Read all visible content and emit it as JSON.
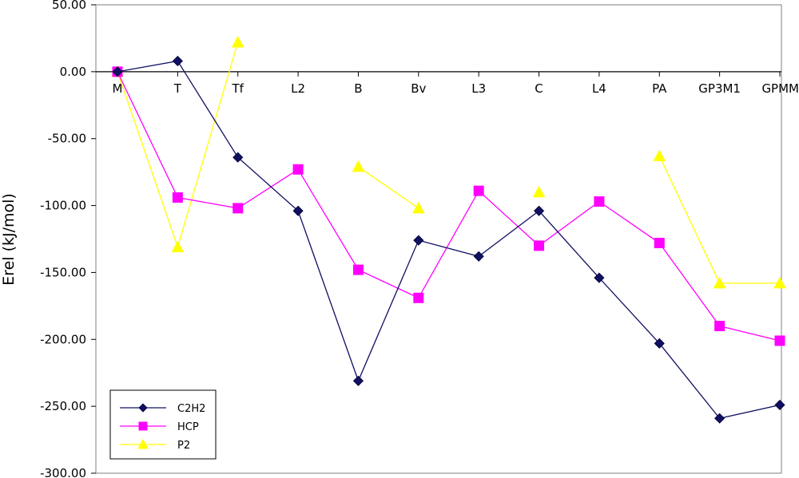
{
  "chart_data": {
    "type": "line",
    "title": "",
    "xlabel": "",
    "ylabel": "Erel (kJ/mol)",
    "categories": [
      "M",
      "T",
      "Tf",
      "L2",
      "B",
      "Bv",
      "L3",
      "C",
      "L4",
      "PA",
      "GP3M1",
      "GPMM"
    ],
    "ylim": [
      -300,
      50
    ],
    "yticks": [
      50,
      0,
      -50,
      -100,
      -150,
      -200,
      -250,
      -300
    ],
    "ytick_labels": [
      "50.00",
      "0.00",
      "-50.00",
      "-100.00",
      "-150.00",
      "-200.00",
      "-250.00",
      "-300.00"
    ],
    "grid": false,
    "legend_position": "bottom-left",
    "series": [
      {
        "name": "C2H2",
        "color": "#101063",
        "marker": "diamond",
        "values": [
          0,
          8,
          -64,
          -104,
          -231,
          -126,
          -138,
          -104,
          -154,
          -203,
          -259,
          -249
        ]
      },
      {
        "name": "HCP",
        "color": "#ff00ff",
        "marker": "square",
        "values": [
          0,
          -94,
          -102,
          -73,
          -148,
          -169,
          -89,
          -130,
          -97,
          -128,
          -190,
          -201
        ]
      },
      {
        "name": "P2",
        "color": "#ffff00",
        "marker": "triangle",
        "values": [
          0,
          -131,
          22,
          null,
          -71,
          -102,
          null,
          -90,
          null,
          -63,
          -158,
          -158
        ]
      }
    ]
  }
}
